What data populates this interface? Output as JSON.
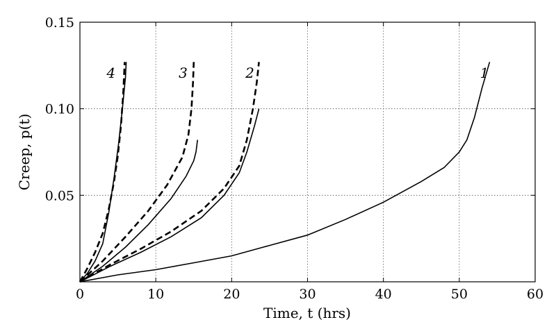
{
  "chart_data": {
    "type": "line",
    "title": "",
    "xlabel": "Time, t (hrs)",
    "ylabel": "Creep, p(t)",
    "xlim": [
      0,
      60
    ],
    "ylim": [
      0,
      0.15
    ],
    "x_ticks": [
      0,
      10,
      20,
      30,
      40,
      50,
      60
    ],
    "x_tick_labels": [
      "0",
      "10",
      "20",
      "30",
      "40",
      "50",
      "60"
    ],
    "y_ticks": [
      0.05,
      0.1,
      0.15
    ],
    "y_tick_labels": [
      "0.05",
      "0.10",
      "0.15"
    ],
    "grid": true,
    "legend": "none",
    "series": [
      {
        "name": "1",
        "style": "solid",
        "label_at": [
          53.3,
          0.118
        ],
        "points": [
          [
            0,
            0
          ],
          [
            5,
            0.004
          ],
          [
            10,
            0.007
          ],
          [
            15,
            0.011
          ],
          [
            20,
            0.015
          ],
          [
            25,
            0.021
          ],
          [
            30,
            0.027
          ],
          [
            35,
            0.036
          ],
          [
            40,
            0.046
          ],
          [
            45,
            0.058
          ],
          [
            48,
            0.066
          ],
          [
            50,
            0.075
          ],
          [
            51,
            0.082
          ],
          [
            52,
            0.095
          ],
          [
            53,
            0.112
          ],
          [
            54,
            0.127
          ]
        ]
      },
      {
        "name": "2",
        "style": "solid",
        "points": [
          [
            0,
            0
          ],
          [
            4,
            0.009
          ],
          [
            8,
            0.017
          ],
          [
            12,
            0.026
          ],
          [
            16,
            0.037
          ],
          [
            19,
            0.05
          ],
          [
            21,
            0.063
          ],
          [
            22,
            0.075
          ],
          [
            23,
            0.09
          ],
          [
            23.6,
            0.1
          ]
        ]
      },
      {
        "name": "2",
        "style": "dashed",
        "label_at": [
          22.4,
          0.118
        ],
        "points": [
          [
            0,
            0
          ],
          [
            4,
            0.01
          ],
          [
            8,
            0.019
          ],
          [
            12,
            0.029
          ],
          [
            16,
            0.041
          ],
          [
            19,
            0.054
          ],
          [
            21,
            0.067
          ],
          [
            22,
            0.082
          ],
          [
            22.8,
            0.1
          ],
          [
            23.3,
            0.115
          ],
          [
            23.6,
            0.127
          ]
        ]
      },
      {
        "name": "3",
        "style": "solid",
        "points": [
          [
            0,
            0
          ],
          [
            3,
            0.009
          ],
          [
            6,
            0.02
          ],
          [
            9,
            0.033
          ],
          [
            12,
            0.048
          ],
          [
            14,
            0.061
          ],
          [
            15,
            0.07
          ],
          [
            15.3,
            0.075
          ],
          [
            15.5,
            0.082
          ]
        ]
      },
      {
        "name": "3",
        "style": "dashed",
        "label_at": [
          13.6,
          0.118
        ],
        "points": [
          [
            0,
            0
          ],
          [
            3,
            0.012
          ],
          [
            6,
            0.026
          ],
          [
            9,
            0.041
          ],
          [
            11.5,
            0.056
          ],
          [
            13.5,
            0.072
          ],
          [
            14.3,
            0.085
          ],
          [
            14.7,
            0.1
          ],
          [
            14.9,
            0.115
          ],
          [
            15.0,
            0.127
          ]
        ]
      },
      {
        "name": "4",
        "style": "solid",
        "points": [
          [
            0,
            0
          ],
          [
            1,
            0.005
          ],
          [
            2,
            0.012
          ],
          [
            3,
            0.022
          ],
          [
            3.8,
            0.04
          ],
          [
            4.5,
            0.06
          ],
          [
            5.1,
            0.08
          ],
          [
            5.6,
            0.1
          ],
          [
            6.0,
            0.118
          ],
          [
            6.1,
            0.127
          ]
        ]
      },
      {
        "name": "4",
        "style": "dashed",
        "label_at": [
          4.1,
          0.118
        ],
        "points": [
          [
            0,
            0
          ],
          [
            1,
            0.008
          ],
          [
            2,
            0.017
          ],
          [
            3,
            0.028
          ],
          [
            3.8,
            0.042
          ],
          [
            4.5,
            0.058
          ],
          [
            5.0,
            0.073
          ],
          [
            5.4,
            0.09
          ],
          [
            5.7,
            0.108
          ],
          [
            5.9,
            0.127
          ]
        ]
      }
    ]
  }
}
